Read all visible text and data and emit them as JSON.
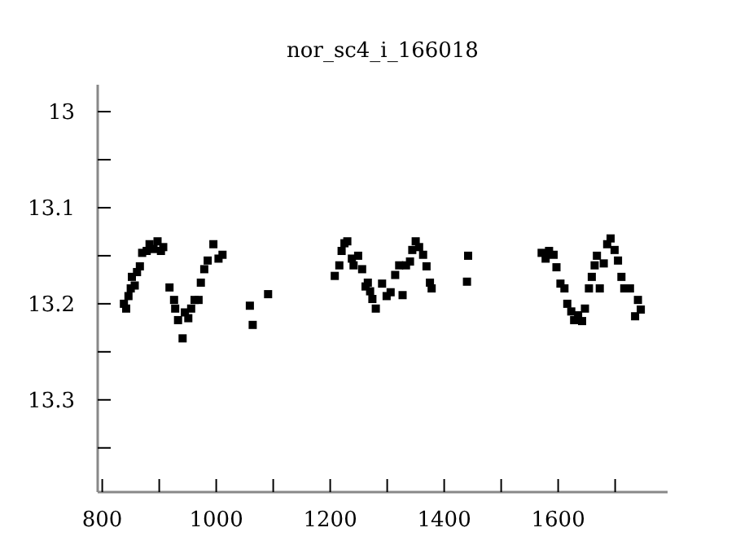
{
  "chart_data": {
    "type": "scatter",
    "title": "nor_sc4_i_166018",
    "marker": "square",
    "grid": false,
    "xlim": [
      792,
      1792
    ],
    "xticks": [
      800,
      {
        "value": 900,
        "label": null
      },
      1000,
      {
        "value": 1100,
        "label": null
      },
      1200,
      {
        "value": 1300,
        "label": null
      },
      1400,
      {
        "value": 1500,
        "label": null
      },
      1600,
      {
        "value": 1700,
        "label": null
      }
    ],
    "ylim": [
      13.396,
      12.972
    ],
    "yticks": [
      13,
      {
        "value": 13.05,
        "label": null
      },
      13.1,
      {
        "value": 13.15,
        "label": null
      },
      13.2,
      {
        "value": 13.25,
        "label": null
      },
      13.3,
      {
        "value": 13.35,
        "label": null
      }
    ],
    "series": [
      {
        "color": "#000000",
        "x": [
          838,
          842,
          846,
          850,
          852,
          857,
          861,
          866,
          870,
          878,
          883,
          890,
          897,
          903,
          907,
          918,
          926,
          928,
          933,
          941,
          945,
          951,
          956,
          962,
          969,
          973,
          979,
          985,
          995,
          1004,
          1011,
          1059,
          1064,
          1091,
          1208,
          1216,
          1220,
          1225,
          1230,
          1238,
          1241,
          1249,
          1256,
          1262,
          1266,
          1270,
          1274,
          1280,
          1291,
          1299,
          1306,
          1314,
          1321,
          1327,
          1333,
          1340,
          1344,
          1350,
          1356,
          1363,
          1369,
          1375,
          1378,
          1440,
          1442,
          1571,
          1578,
          1584,
          1592,
          1597,
          1604,
          1611,
          1616,
          1623,
          1628,
          1635,
          1642,
          1647,
          1654,
          1659,
          1664,
          1668,
          1673,
          1680,
          1686,
          1692,
          1699,
          1705,
          1711,
          1716,
          1726,
          1735,
          1740,
          1745
        ],
        "values": [
          13.2,
          13.205,
          13.192,
          13.184,
          13.172,
          13.181,
          13.167,
          13.161,
          13.147,
          13.145,
          13.138,
          13.143,
          13.135,
          13.145,
          13.141,
          13.183,
          13.196,
          13.205,
          13.217,
          13.236,
          13.209,
          13.215,
          13.205,
          13.196,
          13.196,
          13.178,
          13.164,
          13.155,
          13.138,
          13.153,
          13.149,
          13.202,
          13.222,
          13.19,
          13.171,
          13.16,
          13.145,
          13.137,
          13.135,
          13.153,
          13.16,
          13.15,
          13.164,
          13.182,
          13.178,
          13.187,
          13.195,
          13.205,
          13.179,
          13.192,
          13.188,
          13.17,
          13.16,
          13.191,
          13.16,
          13.156,
          13.144,
          13.135,
          13.141,
          13.149,
          13.161,
          13.178,
          13.184,
          13.177,
          13.15,
          13.147,
          13.153,
          13.145,
          13.149,
          13.162,
          13.179,
          13.184,
          13.2,
          13.208,
          13.217,
          13.212,
          13.218,
          13.205,
          13.184,
          13.172,
          13.16,
          13.15,
          13.184,
          13.158,
          13.138,
          13.132,
          13.144,
          13.155,
          13.172,
          13.184,
          13.184,
          13.213,
          13.196,
          13.206
        ]
      }
    ]
  }
}
